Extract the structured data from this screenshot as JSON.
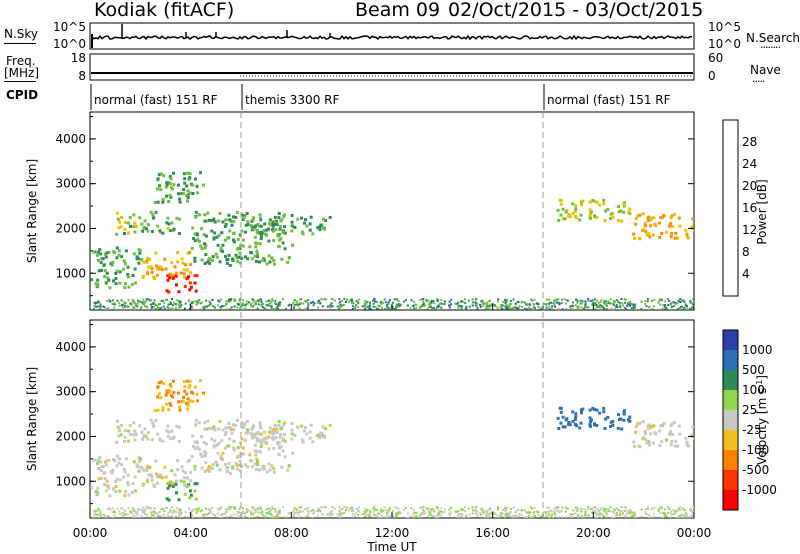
{
  "header": {
    "station": "Kodiak (fitACF)",
    "beam": "Beam 09",
    "date_range": "02/Oct/2015 - 03/Oct/2015"
  },
  "summary_panels": {
    "nsky_label": "N.Sky",
    "nsearch_label": "N.Search",
    "freq_label_top": "Freq.",
    "freq_label_unit": "[MHz]",
    "nave_label": "Nave",
    "cpid_label": "CPID",
    "noise_ticks_left": [
      "10^5",
      "10^0"
    ],
    "noise_ticks_right": [
      "10^5",
      "10^0"
    ],
    "freq_ticks_left": [
      "18",
      "8"
    ],
    "nave_ticks_right": [
      "60",
      "0"
    ],
    "modes": [
      {
        "name": "normal (fast) 151 RF",
        "start_hour": 0,
        "end_hour": 6
      },
      {
        "name": "themis 3300 RF",
        "start_hour": 6,
        "end_hour": 18
      },
      {
        "name": "normal (fast) 151 RF",
        "start_hour": 18,
        "end_hour": 24
      }
    ]
  },
  "x_axis": {
    "label": "Time UT",
    "ticks": [
      "00:00",
      "04:00",
      "08:00",
      "12:00",
      "16:00",
      "20:00",
      "00:00"
    ],
    "tick_hours": [
      0,
      4,
      8,
      12,
      16,
      20,
      24
    ],
    "range_hours": [
      0,
      24
    ]
  },
  "power_panel": {
    "ylabel": "Slant Range [km]",
    "yticks": [
      "1000",
      "2000",
      "3000",
      "4000"
    ],
    "ytick_values": [
      1000,
      2000,
      3000,
      4000
    ],
    "yrange_km": [
      180,
      4600
    ],
    "colorbar_label": "Power [dB]",
    "colorbar_ticks": [
      "4",
      "8",
      "12",
      "16",
      "20",
      "24",
      "28"
    ],
    "colorbar_colors": [
      "#1a1aff",
      "#2a5aa8",
      "#2e8b57",
      "#6fbf3f",
      "#e6c200",
      "#ff8c00",
      "#ff2a00",
      "#ff0000"
    ]
  },
  "velocity_panel": {
    "ylabel": "Slant Range [km]",
    "yticks": [
      "1000",
      "2000",
      "3000",
      "4000"
    ],
    "ytick_values": [
      1000,
      2000,
      3000,
      4000
    ],
    "yrange_km": [
      180,
      4600
    ],
    "colorbar_label": "Velocity [m s",
    "colorbar_label_sup": "-1",
    "colorbar_label_end": "]",
    "colorbar_ticks": [
      "1000",
      "500",
      "100",
      "25",
      "-25",
      "-100",
      "-500",
      "-1000"
    ],
    "colorbar_colors": [
      "#2a3fa8",
      "#2f6fb5",
      "#2e8b57",
      "#8fd64a",
      "#c8c8c0",
      "#f0c020",
      "#ff8000",
      "#ff3300",
      "#ff0000"
    ]
  },
  "chart_data": {
    "type": "heatmap",
    "title": "Kodiak (fitACF)  Beam 09  02/Oct/2015 - 03/Oct/2015",
    "xlabel": "Time UT",
    "ylabel": "Slant Range [km]",
    "xlim_hours": [
      0,
      24
    ],
    "ylim_km": [
      180,
      4600
    ],
    "echo_regions": [
      {
        "t0": 0.0,
        "t1": 2.0,
        "r0": 700,
        "r1": 1600,
        "power_db": 12,
        "velocity_ms": 0
      },
      {
        "t0": 2.0,
        "t1": 4.0,
        "r0": 900,
        "r1": 1500,
        "power_db": 20,
        "velocity_ms": 0
      },
      {
        "t0": 3.0,
        "t1": 4.2,
        "r0": 600,
        "r1": 1000,
        "power_db": 30,
        "velocity_ms": 100
      },
      {
        "t0": 1.0,
        "t1": 3.5,
        "r0": 1900,
        "r1": 2400,
        "power_db": 14,
        "velocity_ms": 0
      },
      {
        "t0": 2.5,
        "t1": 4.5,
        "r0": 2600,
        "r1": 3300,
        "power_db": 12,
        "velocity_ms": -100
      },
      {
        "t0": 4.0,
        "t1": 8.0,
        "r0": 1200,
        "r1": 2400,
        "power_db": 12,
        "velocity_ms": 0
      },
      {
        "t0": 6.0,
        "t1": 9.5,
        "r0": 1900,
        "r1": 2300,
        "power_db": 12,
        "velocity_ms": 0
      },
      {
        "t0": 18.5,
        "t1": 21.5,
        "r0": 2200,
        "r1": 2700,
        "power_db": 16,
        "velocity_ms": 800
      },
      {
        "t0": 21.5,
        "t1": 24.0,
        "r0": 1800,
        "r1": 2400,
        "power_db": 20,
        "velocity_ms": 0
      }
    ]
  }
}
